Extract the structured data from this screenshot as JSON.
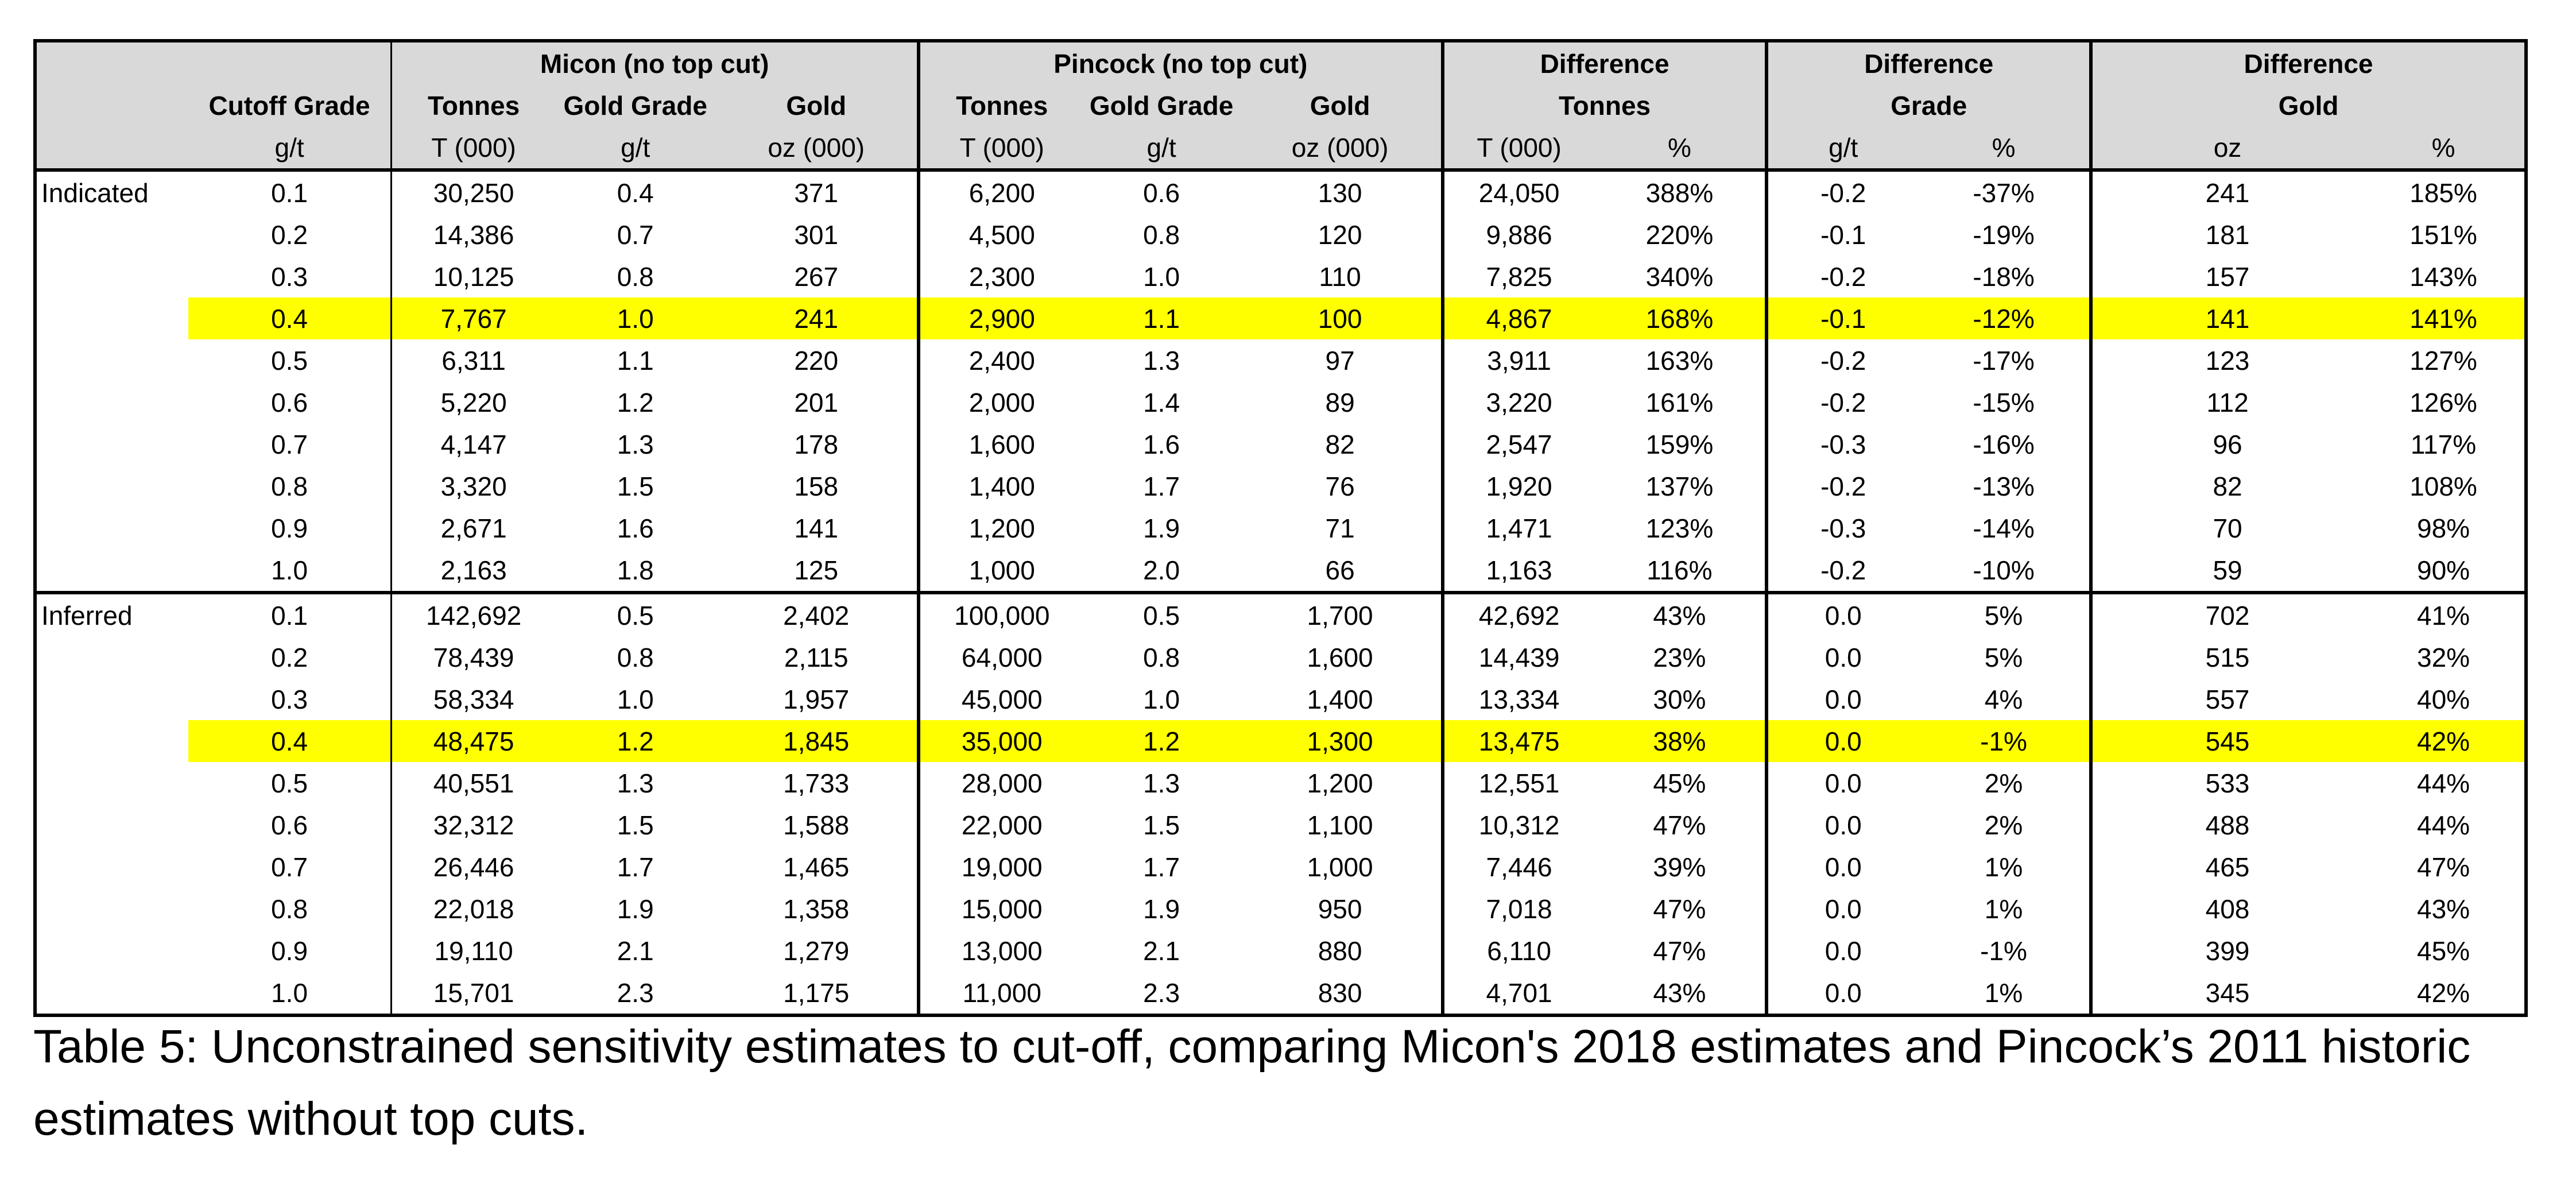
{
  "table": {
    "group_headers": {
      "micon": "Micon (no top cut)",
      "pincock": "Pincock (no top cut)",
      "diff_tonnes": "Difference",
      "diff_grade": "Difference",
      "diff_gold": "Difference"
    },
    "sub_headers": {
      "cutoff": "Cutoff Grade",
      "micon_tonnes": "Tonnes",
      "micon_grade": "Gold Grade",
      "micon_gold": "Gold",
      "pincock_tonnes": "Tonnes",
      "pincock_grade": "Gold Grade",
      "pincock_gold": "Gold",
      "diff_tonnes": "Tonnes",
      "diff_grade": "Grade",
      "diff_gold": "Gold"
    },
    "units": {
      "cutoff": "g/t",
      "micon_tonnes": "T (000)",
      "micon_grade": "g/t",
      "micon_gold": "oz (000)",
      "pincock_tonnes": "T (000)",
      "pincock_grade": "g/t",
      "pincock_gold": "oz (000)",
      "diff_tonnes_abs": "T (000)",
      "diff_tonnes_pct": "%",
      "diff_grade_abs": "g/t",
      "diff_grade_pct": "%",
      "diff_gold_abs": "oz",
      "diff_gold_pct": "%"
    },
    "highlight_color": "#ffff00",
    "header_bg": "#d9d9d9",
    "sections": [
      {
        "label": "Indicated",
        "highlight_index": 3,
        "rows": [
          [
            "0.1",
            "30,250",
            "0.4",
            "371",
            "6,200",
            "0.6",
            "130",
            "24,050",
            "388%",
            "-0.2",
            "-37%",
            "241",
            "185%"
          ],
          [
            "0.2",
            "14,386",
            "0.7",
            "301",
            "4,500",
            "0.8",
            "120",
            "9,886",
            "220%",
            "-0.1",
            "-19%",
            "181",
            "151%"
          ],
          [
            "0.3",
            "10,125",
            "0.8",
            "267",
            "2,300",
            "1.0",
            "110",
            "7,825",
            "340%",
            "-0.2",
            "-18%",
            "157",
            "143%"
          ],
          [
            "0.4",
            "7,767",
            "1.0",
            "241",
            "2,900",
            "1.1",
            "100",
            "4,867",
            "168%",
            "-0.1",
            "-12%",
            "141",
            "141%"
          ],
          [
            "0.5",
            "6,311",
            "1.1",
            "220",
            "2,400",
            "1.3",
            "97",
            "3,911",
            "163%",
            "-0.2",
            "-17%",
            "123",
            "127%"
          ],
          [
            "0.6",
            "5,220",
            "1.2",
            "201",
            "2,000",
            "1.4",
            "89",
            "3,220",
            "161%",
            "-0.2",
            "-15%",
            "112",
            "126%"
          ],
          [
            "0.7",
            "4,147",
            "1.3",
            "178",
            "1,600",
            "1.6",
            "82",
            "2,547",
            "159%",
            "-0.3",
            "-16%",
            "96",
            "117%"
          ],
          [
            "0.8",
            "3,320",
            "1.5",
            "158",
            "1,400",
            "1.7",
            "76",
            "1,920",
            "137%",
            "-0.2",
            "-13%",
            "82",
            "108%"
          ],
          [
            "0.9",
            "2,671",
            "1.6",
            "141",
            "1,200",
            "1.9",
            "71",
            "1,471",
            "123%",
            "-0.3",
            "-14%",
            "70",
            "98%"
          ],
          [
            "1.0",
            "2,163",
            "1.8",
            "125",
            "1,000",
            "2.0",
            "66",
            "1,163",
            "116%",
            "-0.2",
            "-10%",
            "59",
            "90%"
          ]
        ]
      },
      {
        "label": "Inferred",
        "highlight_index": 3,
        "rows": [
          [
            "0.1",
            "142,692",
            "0.5",
            "2,402",
            "100,000",
            "0.5",
            "1,700",
            "42,692",
            "43%",
            "0.0",
            "5%",
            "702",
            "41%"
          ],
          [
            "0.2",
            "78,439",
            "0.8",
            "2,115",
            "64,000",
            "0.8",
            "1,600",
            "14,439",
            "23%",
            "0.0",
            "5%",
            "515",
            "32%"
          ],
          [
            "0.3",
            "58,334",
            "1.0",
            "1,957",
            "45,000",
            "1.0",
            "1,400",
            "13,334",
            "30%",
            "0.0",
            "4%",
            "557",
            "40%"
          ],
          [
            "0.4",
            "48,475",
            "1.2",
            "1,845",
            "35,000",
            "1.2",
            "1,300",
            "13,475",
            "38%",
            "0.0",
            "-1%",
            "545",
            "42%"
          ],
          [
            "0.5",
            "40,551",
            "1.3",
            "1,733",
            "28,000",
            "1.3",
            "1,200",
            "12,551",
            "45%",
            "0.0",
            "2%",
            "533",
            "44%"
          ],
          [
            "0.6",
            "32,312",
            "1.5",
            "1,588",
            "22,000",
            "1.5",
            "1,100",
            "10,312",
            "47%",
            "0.0",
            "2%",
            "488",
            "44%"
          ],
          [
            "0.7",
            "26,446",
            "1.7",
            "1,465",
            "19,000",
            "1.7",
            "1,000",
            "7,446",
            "39%",
            "0.0",
            "1%",
            "465",
            "47%"
          ],
          [
            "0.8",
            "22,018",
            "1.9",
            "1,358",
            "15,000",
            "1.9",
            "950",
            "7,018",
            "47%",
            "0.0",
            "1%",
            "408",
            "43%"
          ],
          [
            "0.9",
            "19,110",
            "2.1",
            "1,279",
            "13,000",
            "2.1",
            "880",
            "6,110",
            "47%",
            "0.0",
            "-1%",
            "399",
            "45%"
          ],
          [
            "1.0",
            "15,701",
            "2.3",
            "1,175",
            "11,000",
            "2.3",
            "830",
            "4,701",
            "43%",
            "0.0",
            "1%",
            "345",
            "42%"
          ]
        ]
      }
    ]
  },
  "caption": "Table 5: Unconstrained sensitivity estimates to cut-off, comparing Micon's 2018 estimates and Pincock’s 2011 historic estimates without top cuts."
}
